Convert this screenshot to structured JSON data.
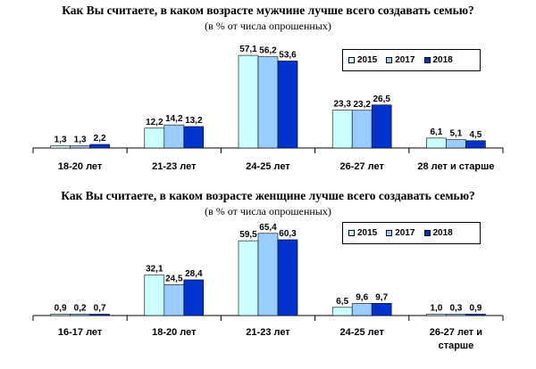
{
  "colors": {
    "2015": "#ccffff",
    "2017": "#99ccff",
    "2018": "#0033cc"
  },
  "chart_data": [
    {
      "type": "bar",
      "title": "Как Вы считаете, в каком возрасте мужчине лучше всего создавать семью?",
      "subtitle": "(в % от числа опрошенных)",
      "categories": [
        "18-20 лет",
        "21-23 лет",
        "24-25 лет",
        "26-27 лет",
        "28 лет и старше"
      ],
      "series": [
        {
          "name": "2015",
          "values": [
            1.3,
            12.2,
            57.1,
            23.3,
            6.1
          ],
          "labels": [
            "1,3",
            "12,2",
            "57,1",
            "23,3",
            "6,1"
          ]
        },
        {
          "name": "2017",
          "values": [
            1.3,
            14.2,
            56.2,
            23.2,
            5.1
          ],
          "labels": [
            "1,3",
            "14,2",
            "56,2",
            "23,2",
            "5,1"
          ]
        },
        {
          "name": "2018",
          "values": [
            2.2,
            13.2,
            53.6,
            26.5,
            4.5
          ],
          "labels": [
            "2,2",
            "13,2",
            "53,6",
            "26,5",
            "4,5"
          ]
        }
      ],
      "legend": "top-right",
      "grid": false
    },
    {
      "type": "bar",
      "title": "Как Вы считаете, в каком возрасте женщине лучше всего создавать семью?",
      "subtitle": "(в % от числа опрошенных)",
      "categories": [
        "16-17 лет",
        "18-20 лет",
        "21-23 лет",
        "24-25 лет",
        "26-27 лет и старше"
      ],
      "series": [
        {
          "name": "2015",
          "values": [
            0.9,
            32.1,
            59.5,
            6.5,
            1.0
          ],
          "labels": [
            "0,9",
            "32,1",
            "59,5",
            "6,5",
            "1,0"
          ]
        },
        {
          "name": "2017",
          "values": [
            0.2,
            24.5,
            65.4,
            9.6,
            0.3
          ],
          "labels": [
            "0,2",
            "24,5",
            "65,4",
            "9,6",
            "0,3"
          ]
        },
        {
          "name": "2018",
          "values": [
            0.7,
            28.4,
            60.3,
            9.7,
            0.9
          ],
          "labels": [
            "0,7",
            "28,4",
            "60,3",
            "9,7",
            "0,9"
          ]
        }
      ],
      "legend": "top-right",
      "grid": false
    }
  ]
}
